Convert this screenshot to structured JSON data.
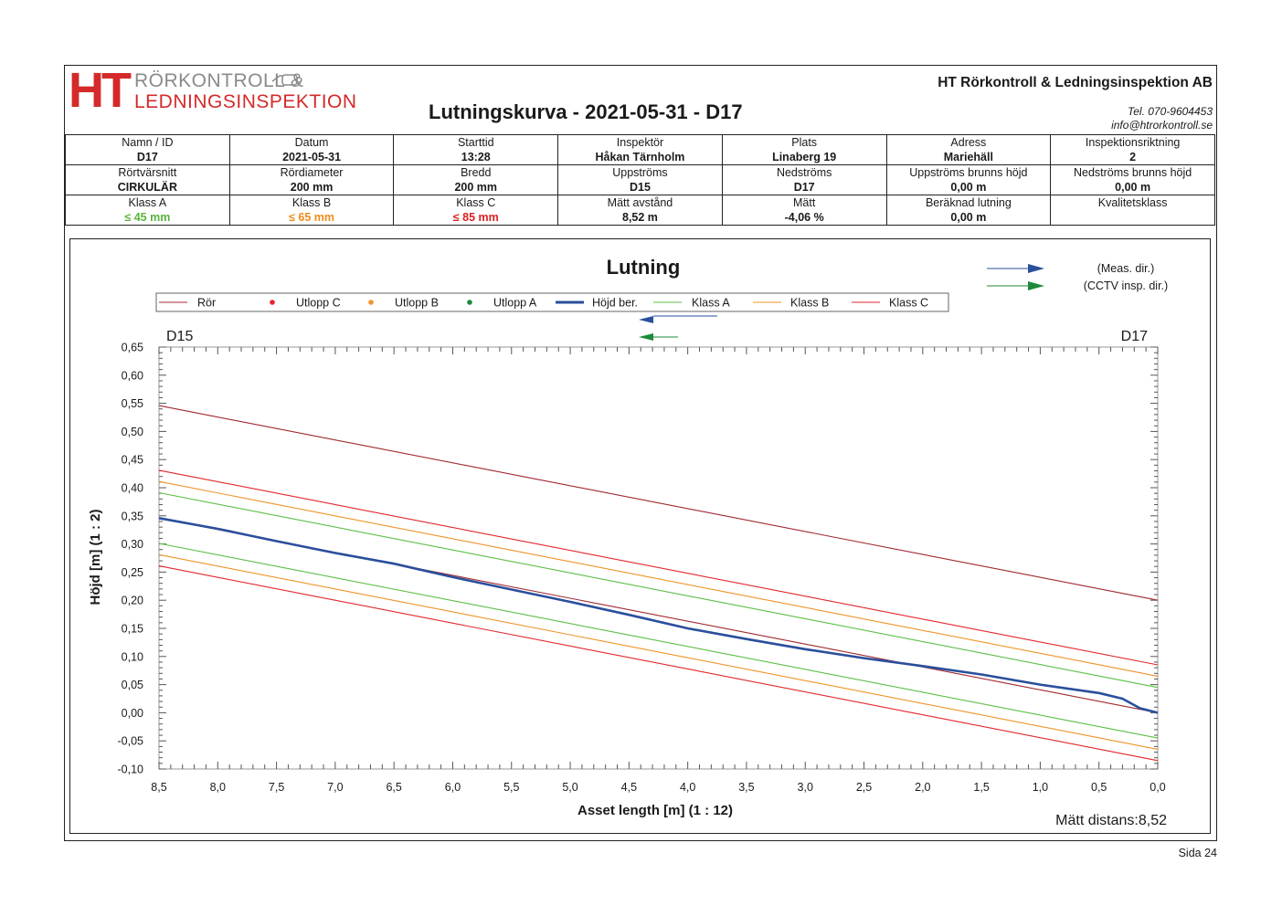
{
  "header": {
    "logo_ht": "HT",
    "logo_line1": "RÖRKONTROLL &",
    "logo_line2": "LEDNINGSINSPEKTION",
    "company": "HT Rörkontroll & Ledningsinspektion AB",
    "title": "Lutningskurva - 2021-05-31 - D17",
    "tel": "Tel. 070-9604453",
    "email": "info@htrorkontroll.se"
  },
  "info": {
    "row1": [
      {
        "label": "Namn / ID",
        "value": "D17"
      },
      {
        "label": "Datum",
        "value": "2021-05-31"
      },
      {
        "label": "Starttid",
        "value": "13:28"
      },
      {
        "label": "Inspektör",
        "value": "Håkan Tärnholm"
      },
      {
        "label": "Plats",
        "value": "Linaberg 19"
      },
      {
        "label": "Adress",
        "value": "Mariehäll"
      },
      {
        "label": "Inspektionsriktning",
        "value": "2"
      }
    ],
    "row2": [
      {
        "label": "Rörtvärsnitt",
        "value": "CIRKULÄR"
      },
      {
        "label": "Rördiameter",
        "value": "200 mm"
      },
      {
        "label": "Bredd",
        "value": "200 mm"
      },
      {
        "label": "Uppströms",
        "value": "D15"
      },
      {
        "label": "Nedströms",
        "value": "D17"
      },
      {
        "label": "Uppströms brunns höjd",
        "value": "0,00 m"
      },
      {
        "label": "Nedströms brunns höjd",
        "value": "0,00 m"
      }
    ],
    "row3": [
      {
        "label": "Klass A",
        "value": "≤ 45 mm"
      },
      {
        "label": "Klass B",
        "value": "≤ 65 mm"
      },
      {
        "label": "Klass C",
        "value": "≤ 85 mm"
      },
      {
        "label": "Mätt avstånd",
        "value": "8,52 m"
      },
      {
        "label": "Mätt",
        "value": "-4,06 %"
      },
      {
        "label": "Beräknad lutning",
        "value": "0,00 m"
      },
      {
        "label": "Kvalitetsklass",
        "value": ""
      }
    ]
  },
  "footer": {
    "page": "Sida 24"
  },
  "colors": {
    "pipe": "#a0282e",
    "measured": "#2a4f9c",
    "class_a": "#5bbf46",
    "class_b": "#ef9327",
    "class_c": "#e2262b",
    "outlet_c": "#e2262b",
    "outlet_b": "#ef9327",
    "outlet_a": "#1d8a3a",
    "meas_dir_arrow": "#2a4f9c",
    "cctv_dir_arrow": "#1d8a3a"
  },
  "chart_data": {
    "type": "line",
    "title": "Lutning",
    "xlabel": "Asset length [m] (1 : 12)",
    "ylabel": "Höjd [m] (1 : 2)",
    "xlim": [
      8.5,
      0.0
    ],
    "ylim": [
      -0.1,
      0.65
    ],
    "x_reversed": true,
    "x_ticks": [
      "8,5",
      "8,0",
      "7,5",
      "7,0",
      "6,5",
      "6,0",
      "5,5",
      "5,0",
      "4,5",
      "4,0",
      "3,5",
      "3,0",
      "2,5",
      "2,0",
      "1,5",
      "1,0",
      "0,5",
      "0,0"
    ],
    "y_ticks": [
      "-0,10",
      "-0,05",
      "0,00",
      "0,05",
      "0,10",
      "0,15",
      "0,20",
      "0,25",
      "0,30",
      "0,35",
      "0,40",
      "0,45",
      "0,50",
      "0,55",
      "0,60",
      "0,65"
    ],
    "left_node": "D15",
    "right_node": "D17",
    "measured_distance_label": "Mätt distans:8,52",
    "direction_labels": {
      "meas": "(Meas. dir.)",
      "cctv": "(CCTV insp. dir.)"
    },
    "legend": [
      "Rör",
      "Utlopp C",
      "Utlopp B",
      "Utlopp A",
      "Höjd ber.",
      "Klass A",
      "Klass B",
      "Klass C"
    ],
    "series": [
      {
        "name": "Rör",
        "style": "line",
        "x": [
          8.5,
          0.0
        ],
        "y": [
          0.546,
          0.2
        ]
      },
      {
        "name": "Rör",
        "style": "line",
        "x": [
          8.5,
          0.0
        ],
        "y": [
          0.346,
          0.0
        ]
      },
      {
        "name": "Klass C",
        "style": "line",
        "x": [
          8.5,
          0.0
        ],
        "y": [
          0.431,
          0.085
        ]
      },
      {
        "name": "Klass C",
        "style": "line",
        "x": [
          8.5,
          0.0
        ],
        "y": [
          0.261,
          -0.085
        ]
      },
      {
        "name": "Klass B",
        "style": "line",
        "x": [
          8.5,
          0.0
        ],
        "y": [
          0.411,
          0.065
        ]
      },
      {
        "name": "Klass B",
        "style": "line",
        "x": [
          8.5,
          0.0
        ],
        "y": [
          0.281,
          -0.065
        ]
      },
      {
        "name": "Klass A",
        "style": "line",
        "x": [
          8.5,
          0.0
        ],
        "y": [
          0.391,
          0.045
        ]
      },
      {
        "name": "Klass A",
        "style": "line",
        "x": [
          8.5,
          0.0
        ],
        "y": [
          0.301,
          -0.045
        ]
      },
      {
        "name": "Höjd ber.",
        "style": "thick",
        "x": [
          8.5,
          8.0,
          7.5,
          7.0,
          6.5,
          6.0,
          5.5,
          5.0,
          4.5,
          4.0,
          3.5,
          3.0,
          2.5,
          2.0,
          1.5,
          1.0,
          0.5,
          0.3,
          0.15,
          0.0
        ],
        "y": [
          0.346,
          0.327,
          0.305,
          0.284,
          0.265,
          0.241,
          0.219,
          0.197,
          0.174,
          0.15,
          0.131,
          0.113,
          0.097,
          0.083,
          0.068,
          0.05,
          0.035,
          0.025,
          0.008,
          0.0
        ]
      }
    ]
  }
}
